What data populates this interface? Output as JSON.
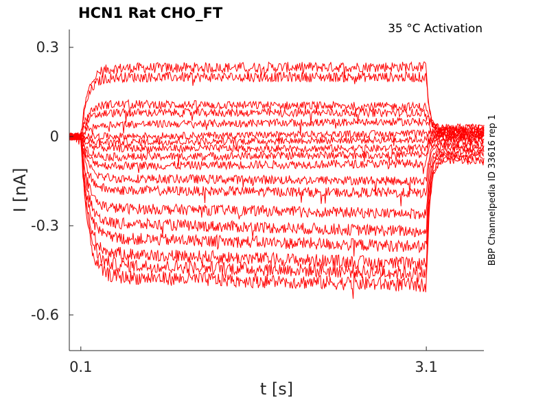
{
  "chart_data": {
    "type": "line",
    "title": "HCN1  Rat  CHO_FT",
    "annotation": "35 °C  Activation",
    "side_note": "BBP Channelpedia ID 33616 rep 1",
    "xlabel": "t [s]",
    "ylabel": "I [nA]",
    "xlim": [
      0.0,
      3.6
    ],
    "ylim": [
      -0.72,
      0.36
    ],
    "x_ticks": [
      0.1,
      3.1
    ],
    "x_tick_labels": [
      "0.1",
      "3.1"
    ],
    "y_ticks": [
      0.3,
      0.0,
      -0.3,
      -0.6
    ],
    "y_tick_labels": [
      "0.3",
      "0",
      "-0.3",
      "-0.6"
    ],
    "grid": false,
    "line_color": "#ff0000",
    "step_start": 0.1,
    "step_end": 3.1,
    "series": [
      {
        "values": [
          0.0,
          0.23,
          0.235,
          0.0
        ]
      },
      {
        "values": [
          0.0,
          0.2,
          0.2,
          0.02
        ]
      },
      {
        "values": [
          0.0,
          0.11,
          0.1,
          0.03
        ]
      },
      {
        "values": [
          0.0,
          0.08,
          0.08,
          0.03
        ]
      },
      {
        "values": [
          0.0,
          0.04,
          0.05,
          0.02
        ]
      },
      {
        "values": [
          0.0,
          0.0,
          0.01,
          0.02
        ]
      },
      {
        "values": [
          0.0,
          -0.02,
          -0.01,
          0.01
        ]
      },
      {
        "values": [
          0.0,
          -0.04,
          -0.04,
          0.01
        ]
      },
      {
        "values": [
          0.0,
          -0.07,
          -0.06,
          0.0
        ]
      },
      {
        "values": [
          0.0,
          -0.1,
          -0.09,
          0.0
        ]
      },
      {
        "values": [
          0.0,
          -0.14,
          -0.15,
          -0.01
        ]
      },
      {
        "values": [
          0.0,
          -0.18,
          -0.19,
          -0.02
        ]
      },
      {
        "values": [
          0.0,
          -0.24,
          -0.26,
          -0.03
        ]
      },
      {
        "values": [
          0.0,
          -0.29,
          -0.32,
          -0.04
        ]
      },
      {
        "values": [
          0.0,
          -0.34,
          -0.37,
          -0.05
        ]
      },
      {
        "values": [
          0.0,
          -0.39,
          -0.43,
          -0.06
        ]
      },
      {
        "values": [
          0.0,
          -0.43,
          -0.46,
          -0.07
        ]
      },
      {
        "values": [
          0.0,
          -0.47,
          -0.5,
          -0.08
        ]
      }
    ]
  }
}
